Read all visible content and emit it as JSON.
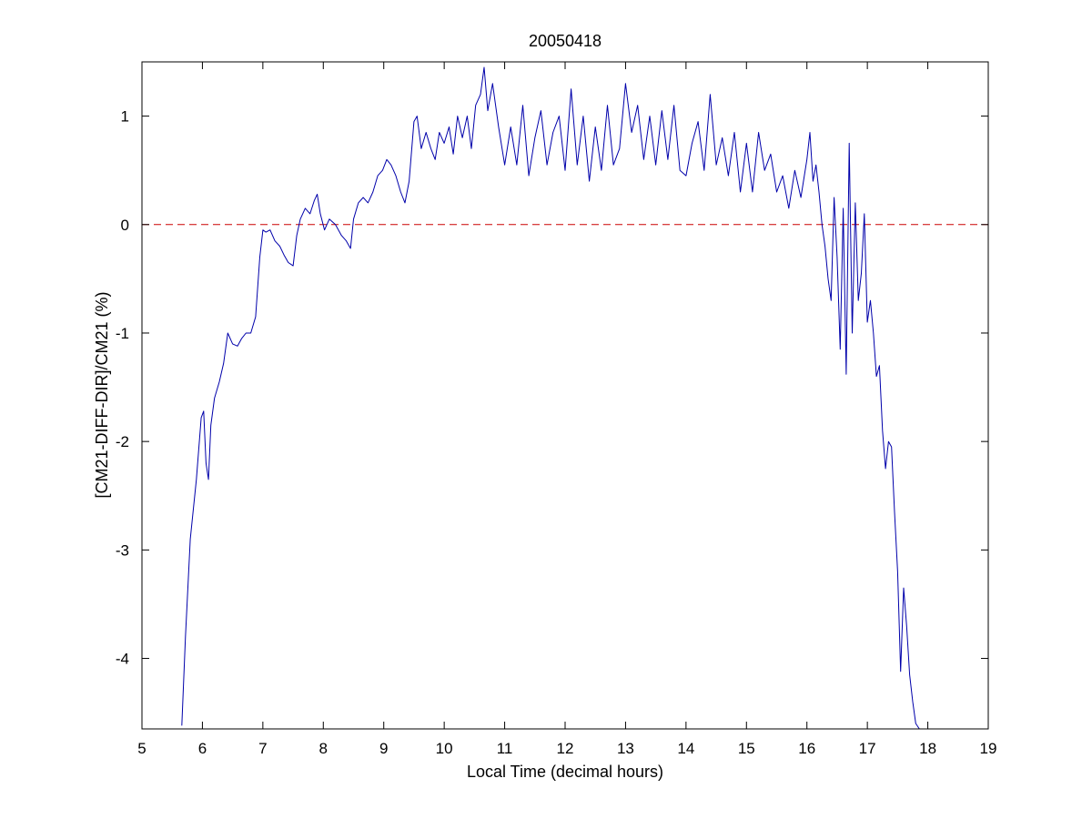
{
  "chart_data": {
    "type": "line",
    "title": "20050418",
    "xlabel": "Local Time (decimal hours)",
    "ylabel": "[CM21-DIFF-DIR]/CM21 (%)",
    "xlim": [
      5,
      19
    ],
    "ylim": [
      -4.65,
      1.5
    ],
    "xticks": [
      5,
      6,
      7,
      8,
      9,
      10,
      11,
      12,
      13,
      14,
      15,
      16,
      17,
      18,
      19
    ],
    "yticks": [
      -4,
      -3,
      -2,
      -1,
      0,
      1
    ],
    "grid": false,
    "reference_line": {
      "y": 0,
      "style": "dashed",
      "color": "#cc0000"
    },
    "series": [
      {
        "color": "#0000aa",
        "x": [
          5.66,
          5.72,
          5.8,
          5.9,
          5.98,
          6.02,
          6.06,
          6.1,
          6.14,
          6.2,
          6.28,
          6.35,
          6.42,
          6.5,
          6.58,
          6.65,
          6.72,
          6.8,
          6.88,
          6.95,
          7.0,
          7.05,
          7.12,
          7.2,
          7.28,
          7.35,
          7.42,
          7.5,
          7.56,
          7.62,
          7.7,
          7.78,
          7.85,
          7.9,
          7.95,
          8.02,
          8.1,
          8.2,
          8.3,
          8.38,
          8.45,
          8.5,
          8.58,
          8.66,
          8.74,
          8.82,
          8.9,
          8.98,
          9.05,
          9.12,
          9.2,
          9.28,
          9.35,
          9.42,
          9.5,
          9.55,
          9.62,
          9.7,
          9.78,
          9.85,
          9.92,
          10.0,
          10.08,
          10.15,
          10.22,
          10.3,
          10.38,
          10.45,
          10.52,
          10.6,
          10.66,
          10.72,
          10.8,
          10.9,
          11.0,
          11.1,
          11.2,
          11.3,
          11.4,
          11.5,
          11.6,
          11.7,
          11.8,
          11.9,
          12.0,
          12.1,
          12.2,
          12.3,
          12.4,
          12.5,
          12.6,
          12.7,
          12.8,
          12.9,
          13.0,
          13.1,
          13.2,
          13.3,
          13.4,
          13.5,
          13.6,
          13.7,
          13.8,
          13.9,
          14.0,
          14.1,
          14.2,
          14.3,
          14.4,
          14.5,
          14.6,
          14.7,
          14.8,
          14.9,
          15.0,
          15.1,
          15.2,
          15.3,
          15.4,
          15.5,
          15.6,
          15.7,
          15.8,
          15.9,
          16.0,
          16.05,
          16.1,
          16.15,
          16.2,
          16.25,
          16.3,
          16.35,
          16.4,
          16.45,
          16.5,
          16.55,
          16.6,
          16.65,
          16.7,
          16.75,
          16.8,
          16.85,
          16.9,
          16.95,
          17.0,
          17.05,
          17.1,
          17.15,
          17.2,
          17.25,
          17.3,
          17.35,
          17.4,
          17.45,
          17.5,
          17.55,
          17.6,
          17.65,
          17.7,
          17.75,
          17.8,
          17.86
        ],
        "y": [
          -4.62,
          -3.8,
          -2.9,
          -2.35,
          -1.78,
          -1.72,
          -2.2,
          -2.35,
          -1.85,
          -1.6,
          -1.45,
          -1.28,
          -1.0,
          -1.1,
          -1.12,
          -1.05,
          -1.0,
          -1.0,
          -0.85,
          -0.3,
          -0.05,
          -0.07,
          -0.05,
          -0.15,
          -0.2,
          -0.28,
          -0.35,
          -0.38,
          -0.1,
          0.05,
          0.15,
          0.1,
          0.22,
          0.28,
          0.1,
          -0.05,
          0.05,
          0.0,
          -0.1,
          -0.15,
          -0.22,
          0.05,
          0.2,
          0.25,
          0.2,
          0.3,
          0.45,
          0.5,
          0.6,
          0.55,
          0.45,
          0.3,
          0.2,
          0.4,
          0.95,
          1.0,
          0.7,
          0.85,
          0.7,
          0.6,
          0.85,
          0.75,
          0.9,
          0.65,
          1.0,
          0.8,
          1.0,
          0.7,
          1.1,
          1.2,
          1.45,
          1.05,
          1.3,
          0.9,
          0.55,
          0.9,
          0.55,
          1.1,
          0.45,
          0.8,
          1.05,
          0.55,
          0.85,
          1.0,
          0.5,
          1.25,
          0.55,
          1.0,
          0.4,
          0.9,
          0.5,
          1.1,
          0.55,
          0.7,
          1.3,
          0.85,
          1.1,
          0.6,
          1.0,
          0.55,
          1.05,
          0.6,
          1.1,
          0.5,
          0.45,
          0.75,
          0.95,
          0.5,
          1.2,
          0.55,
          0.8,
          0.45,
          0.85,
          0.3,
          0.75,
          0.3,
          0.85,
          0.5,
          0.65,
          0.3,
          0.45,
          0.15,
          0.5,
          0.25,
          0.6,
          0.85,
          0.4,
          0.55,
          0.3,
          0.0,
          -0.2,
          -0.5,
          -0.7,
          0.25,
          -0.3,
          -1.15,
          0.15,
          -1.38,
          0.75,
          -1.0,
          0.2,
          -0.7,
          -0.45,
          0.1,
          -0.9,
          -0.7,
          -1.0,
          -1.4,
          -1.3,
          -1.9,
          -2.25,
          -2.0,
          -2.05,
          -2.65,
          -3.2,
          -4.12,
          -3.35,
          -3.7,
          -4.15,
          -4.4,
          -4.6,
          -4.65
        ]
      }
    ]
  }
}
